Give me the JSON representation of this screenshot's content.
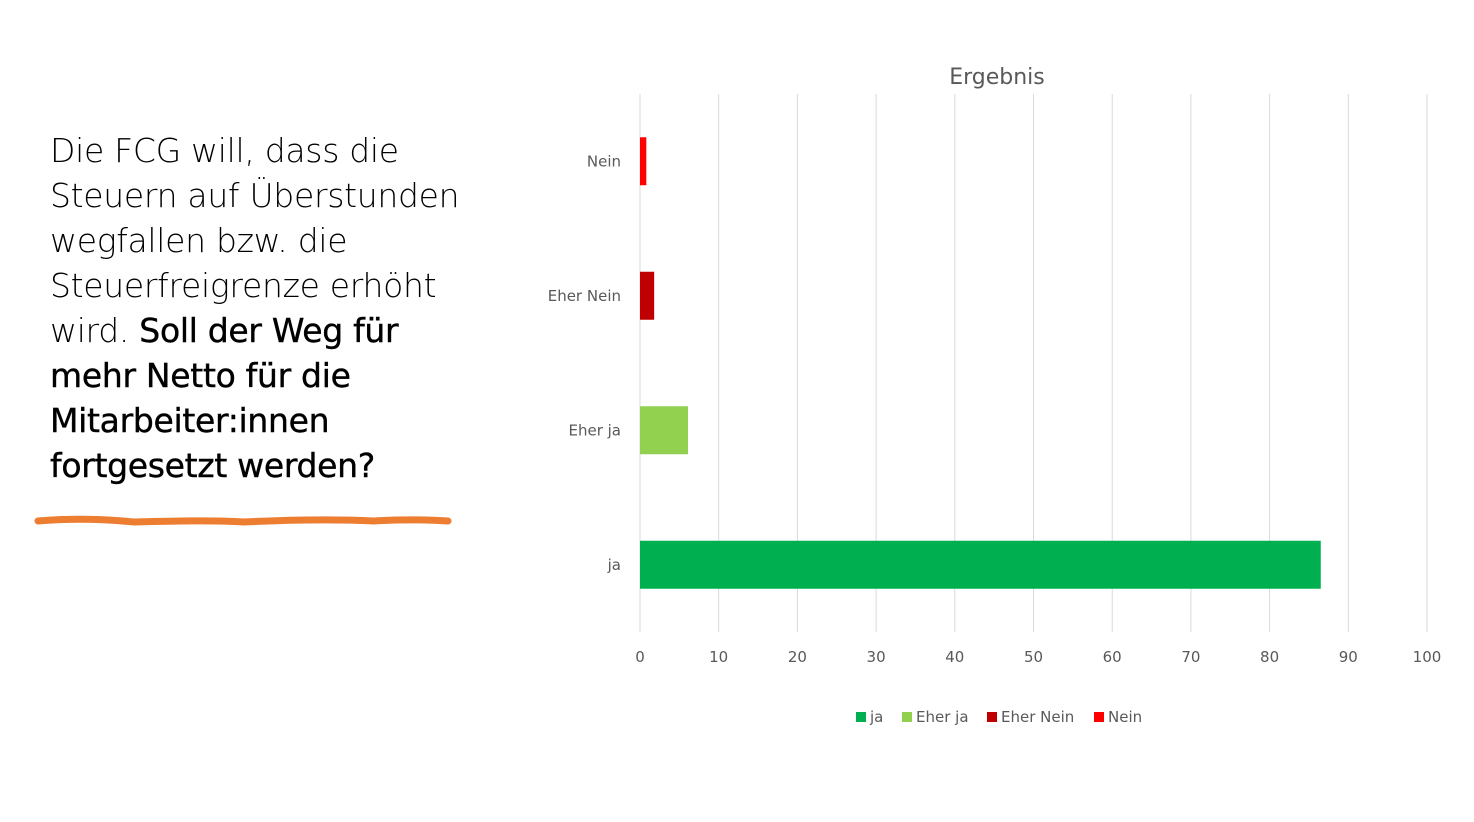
{
  "question": {
    "normal": "Die FCG will, dass die Steuern auf Überstunden wegfallen bzw. die Steuerfreigrenze erhöht wird.",
    "bold": "Soll der Weg für mehr Netto für die Mitarbeiter:innen fortgesetzt werden?"
  },
  "colors": {
    "ja": "#00b050",
    "eher_ja": "#92d050",
    "eher_nein": "#c00000",
    "nein": "#ff0000",
    "underline": "#ed7d31"
  },
  "chart_data": {
    "type": "bar",
    "orientation": "horizontal",
    "title": "Ergebnis",
    "categories": [
      "ja",
      "Eher ja",
      "Eher Nein",
      "Nein"
    ],
    "values": [
      86.5,
      6.1,
      1.8,
      0.8
    ],
    "xlim": [
      0,
      100
    ],
    "xticks": [
      0,
      10,
      20,
      30,
      40,
      50,
      60,
      70,
      80,
      90,
      100
    ],
    "grid": true,
    "legend": "bottom",
    "legend_entries": [
      "ja",
      "Eher ja",
      "Eher Nein",
      "Nein"
    ]
  }
}
